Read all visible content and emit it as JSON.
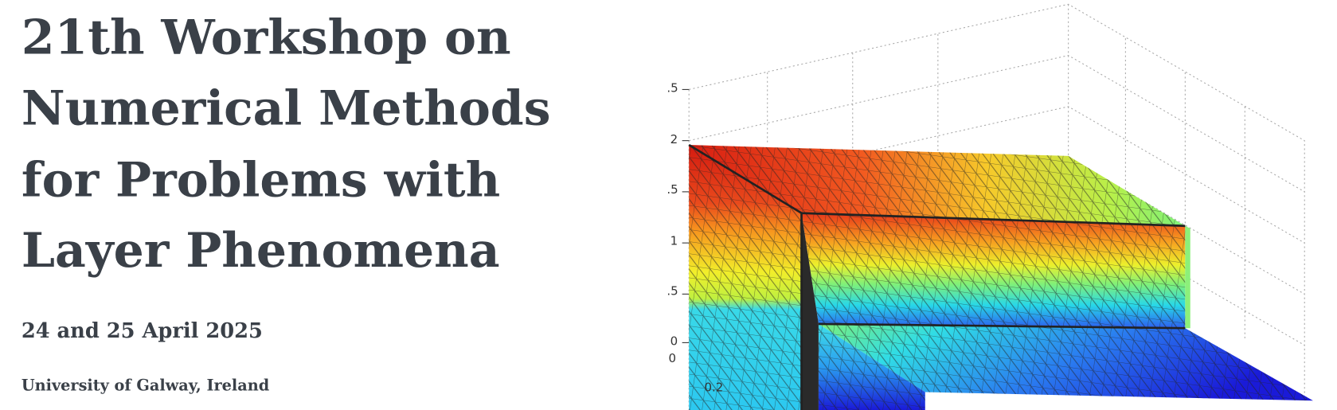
{
  "header": {
    "title_lines": [
      "21th Workshop on",
      "Numerical Methods",
      "for Problems with",
      "Layer Phenomena"
    ],
    "date": "24 and 25 April 2025",
    "location": "University of Galway, Ireland"
  },
  "figure": {
    "tick_labels": [
      ".5",
      "2",
      ".5",
      "1",
      ".5",
      "0",
      "0",
      "0.2"
    ]
  }
}
